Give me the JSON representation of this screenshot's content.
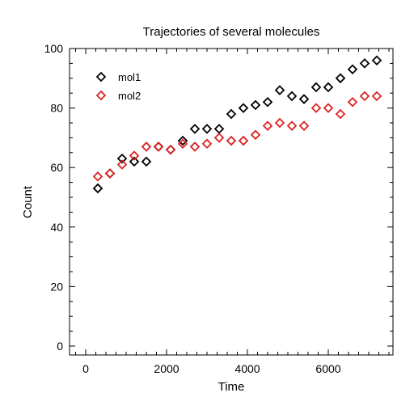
{
  "chart_data": {
    "type": "scatter",
    "title": "Trajectories of several molecules",
    "xlabel": "Time",
    "ylabel": "Count",
    "xlim": [
      -400,
      7600
    ],
    "ylim": [
      -3,
      100
    ],
    "xticks": [
      0,
      2000,
      4000,
      6000
    ],
    "yticks": [
      0,
      20,
      40,
      60,
      80,
      100
    ],
    "xtick_labels": [
      "0",
      "2000",
      "4000",
      "6000"
    ],
    "ytick_labels": [
      "0",
      "20",
      "40",
      "60",
      "80",
      "100"
    ],
    "grid": false,
    "legend_position": "top-left",
    "marker": "diamond",
    "series": [
      {
        "name": "mol1",
        "color": "#000000",
        "x": [
          300,
          600,
          900,
          1200,
          1500,
          1800,
          2100,
          2400,
          2700,
          3000,
          3300,
          3600,
          3900,
          4200,
          4500,
          4800,
          5100,
          5400,
          5700,
          6000,
          6300,
          6600,
          6900,
          7200
        ],
        "y": [
          53,
          58,
          63,
          62,
          62,
          67,
          66,
          69,
          73,
          73,
          73,
          78,
          80,
          81,
          82,
          86,
          84,
          83,
          87,
          87,
          90,
          93,
          95,
          96
        ]
      },
      {
        "name": "mol2",
        "color": "#dd2222",
        "x": [
          300,
          600,
          900,
          1200,
          1500,
          1800,
          2100,
          2400,
          2700,
          3000,
          3300,
          3600,
          3900,
          4200,
          4500,
          4800,
          5100,
          5400,
          5700,
          6000,
          6300,
          6600,
          6900,
          7200
        ],
        "y": [
          57,
          58,
          61,
          64,
          67,
          67,
          66,
          68,
          67,
          68,
          70,
          69,
          69,
          71,
          74,
          75,
          74,
          74,
          80,
          80,
          78,
          82,
          84,
          84
        ]
      }
    ]
  }
}
